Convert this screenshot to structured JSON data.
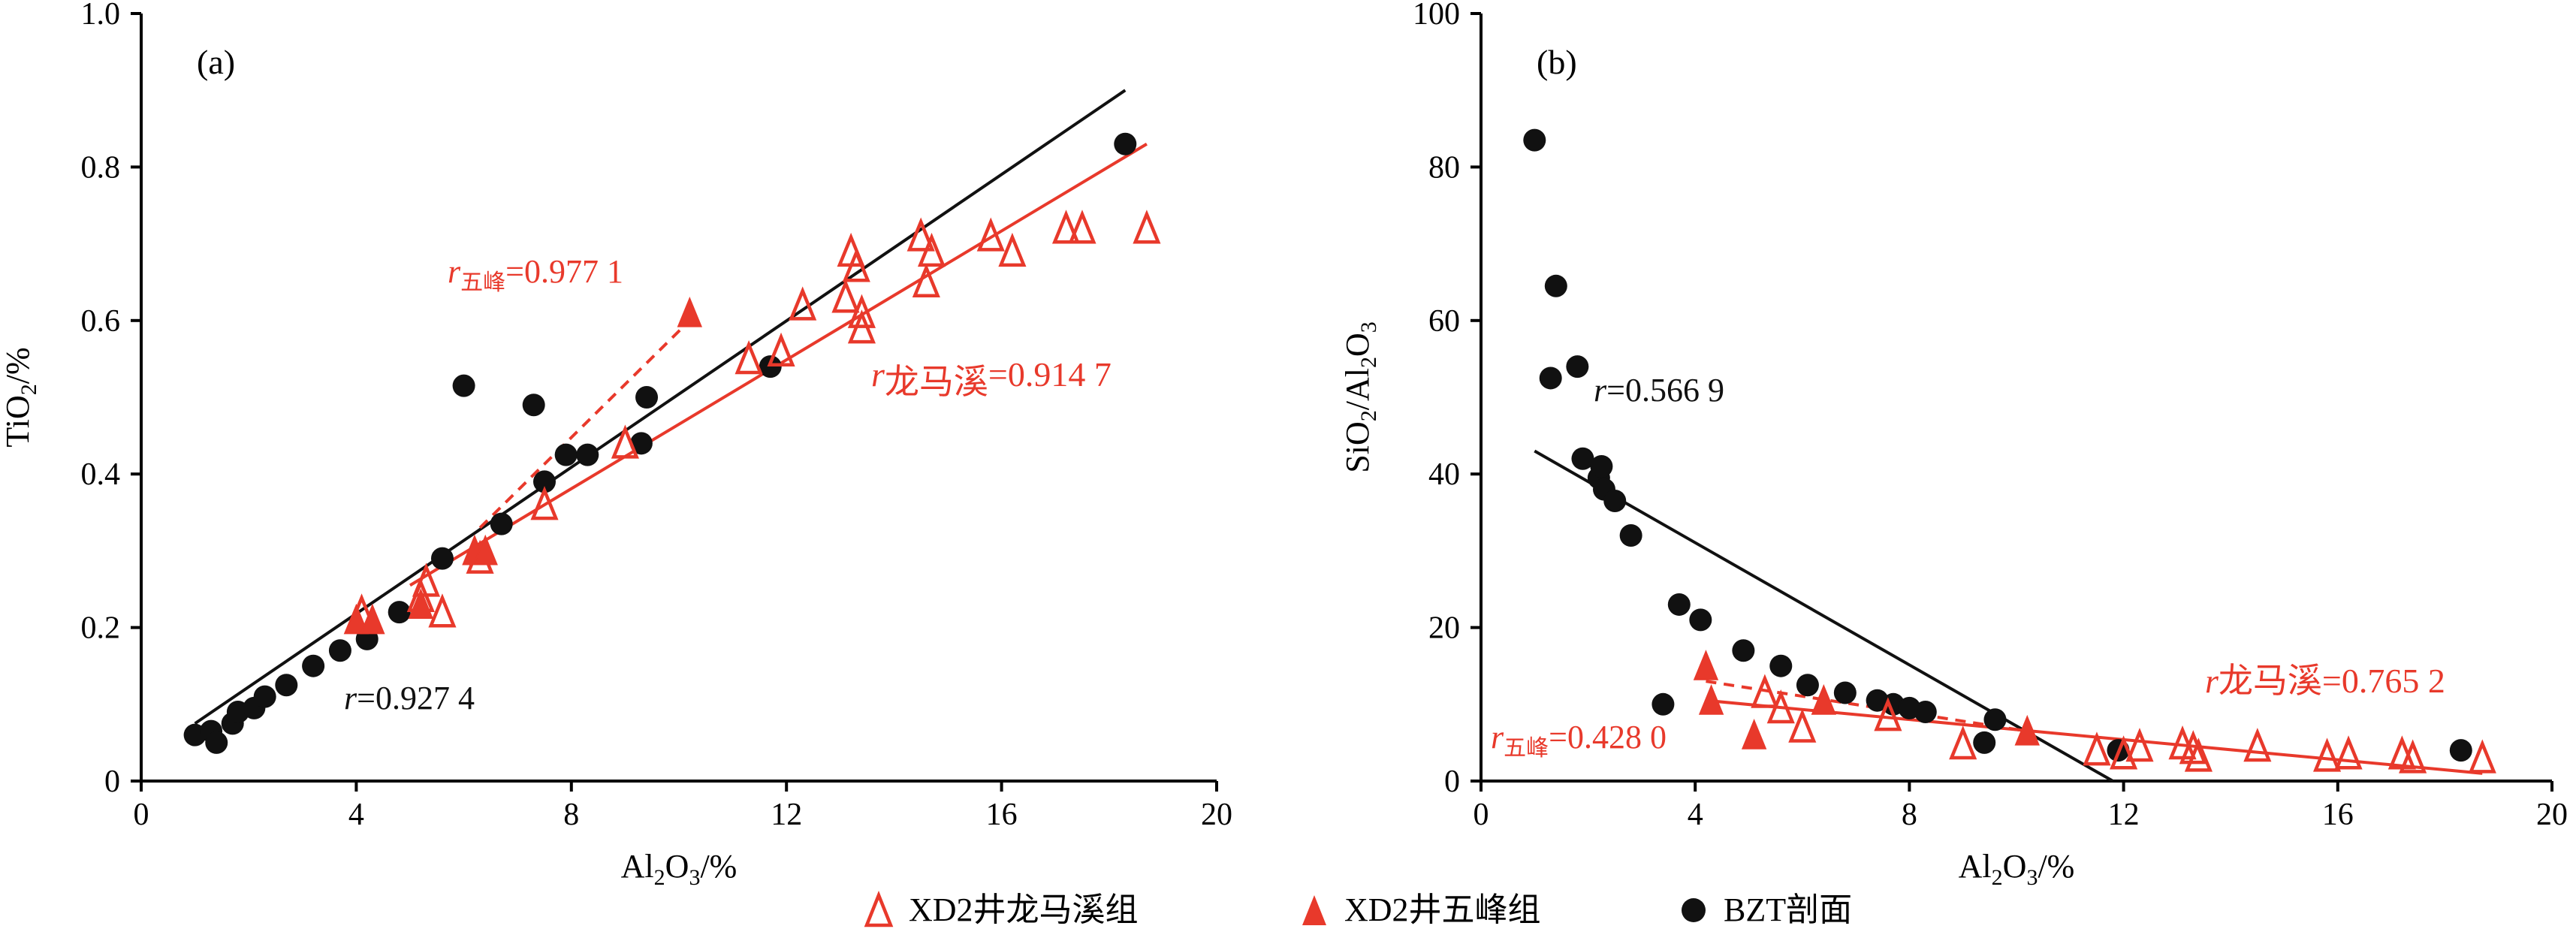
{
  "colors": {
    "red": "#e8392b",
    "black": "#111111"
  },
  "legend": {
    "items": [
      {
        "label": "XD2井龙马溪组",
        "marker": "open-triangle",
        "color": "#e8392b"
      },
      {
        "label": "XD2井五峰组",
        "marker": "filled-triangle",
        "color": "#e8392b"
      },
      {
        "label": "BZT剖面",
        "marker": "filled-circle",
        "color": "#111111"
      }
    ],
    "placement": "bottom-center"
  },
  "chart_data": [
    {
      "type": "scatter",
      "panel_label": "(a)",
      "xlabel": "Al2O3/%",
      "ylabel": "TiO2/%",
      "xlim": [
        0,
        20
      ],
      "ylim": [
        0,
        1.0
      ],
      "xticks": [
        0,
        4,
        8,
        12,
        16,
        20
      ],
      "yticks": [
        0,
        0.2,
        0.4,
        0.6,
        0.8,
        1.0
      ],
      "ytick_labels": [
        "0",
        "0.2",
        "0.4",
        "0.6",
        "0.8",
        "1.0"
      ],
      "grid": false,
      "series": [
        {
          "name": "XD2井龙马溪组",
          "marker": "open-triangle",
          "points": [
            [
              4.1,
              0.22
            ],
            [
              5.2,
              0.24
            ],
            [
              5.3,
              0.26
            ],
            [
              5.6,
              0.22
            ],
            [
              6.3,
              0.29
            ],
            [
              7.5,
              0.36
            ],
            [
              9.0,
              0.44
            ],
            [
              11.3,
              0.55
            ],
            [
              11.9,
              0.56
            ],
            [
              12.3,
              0.62
            ],
            [
              13.1,
              0.63
            ],
            [
              13.2,
              0.69
            ],
            [
              13.3,
              0.67
            ],
            [
              13.4,
              0.61
            ],
            [
              13.4,
              0.59
            ],
            [
              14.5,
              0.71
            ],
            [
              14.6,
              0.65
            ],
            [
              14.7,
              0.69
            ],
            [
              15.8,
              0.71
            ],
            [
              16.2,
              0.69
            ],
            [
              17.2,
              0.72
            ],
            [
              17.5,
              0.72
            ],
            [
              18.7,
              0.72
            ]
          ]
        },
        {
          "name": "XD2井五峰组",
          "marker": "filled-triangle",
          "points": [
            [
              4.0,
              0.21
            ],
            [
              4.3,
              0.21
            ],
            [
              5.2,
              0.23
            ],
            [
              6.2,
              0.3
            ],
            [
              6.4,
              0.3
            ],
            [
              10.2,
              0.61
            ]
          ]
        },
        {
          "name": "BZT剖面",
          "marker": "filled-circle",
          "points": [
            [
              1.0,
              0.06
            ],
            [
              1.3,
              0.065
            ],
            [
              1.4,
              0.05
            ],
            [
              1.7,
              0.075
            ],
            [
              1.8,
              0.09
            ],
            [
              2.1,
              0.095
            ],
            [
              2.3,
              0.11
            ],
            [
              2.7,
              0.125
            ],
            [
              3.2,
              0.15
            ],
            [
              3.7,
              0.17
            ],
            [
              4.2,
              0.185
            ],
            [
              4.8,
              0.22
            ],
            [
              5.6,
              0.29
            ],
            [
              6.0,
              0.515
            ],
            [
              6.7,
              0.335
            ],
            [
              7.3,
              0.49
            ],
            [
              7.5,
              0.39
            ],
            [
              7.9,
              0.425
            ],
            [
              8.3,
              0.425
            ],
            [
              9.3,
              0.44
            ],
            [
              9.4,
              0.5
            ],
            [
              11.7,
              0.54
            ],
            [
              18.3,
              0.83
            ]
          ]
        }
      ],
      "fit_lines": [
        {
          "color": "black",
          "style": "solid",
          "from": [
            1.0,
            0.075
          ],
          "to": [
            18.3,
            0.9
          ]
        },
        {
          "color": "red",
          "style": "solid",
          "from": [
            5.0,
            0.255
          ],
          "to": [
            18.7,
            0.83
          ]
        },
        {
          "color": "red",
          "style": "dashed",
          "from": [
            6.3,
            0.33
          ],
          "to": [
            10.2,
            0.6
          ]
        }
      ],
      "annotations": [
        {
          "r": "r",
          "sub": "五峰",
          "value": "=0.977 1",
          "color": "red"
        },
        {
          "r": "r",
          "sub": "龙马溪",
          "value": "=0.914 7",
          "color": "red"
        },
        {
          "r": "r",
          "sub": "",
          "value": "=0.927 4",
          "color": "black"
        }
      ]
    },
    {
      "type": "scatter",
      "panel_label": "(b)",
      "xlabel": "Al2O3/%",
      "ylabel": "SiO2/Al2O3",
      "xlim": [
        0,
        20
      ],
      "ylim": [
        0,
        100
      ],
      "xticks": [
        0,
        4,
        8,
        12,
        16,
        20
      ],
      "yticks": [
        0,
        20,
        40,
        60,
        80,
        100
      ],
      "ytick_labels": [
        "0",
        "20",
        "40",
        "60",
        "80",
        "100"
      ],
      "grid": false,
      "series": [
        {
          "name": "XD2井龙马溪组",
          "marker": "open-triangle",
          "points": [
            [
              5.3,
              11.5
            ],
            [
              5.6,
              9.5
            ],
            [
              6.0,
              7.0
            ],
            [
              7.6,
              8.5
            ],
            [
              9.0,
              4.8
            ],
            [
              11.5,
              4.0
            ],
            [
              12.0,
              3.5
            ],
            [
              12.3,
              4.5
            ],
            [
              13.1,
              4.8
            ],
            [
              13.3,
              4.2
            ],
            [
              13.4,
              3.2
            ],
            [
              14.5,
              4.5
            ],
            [
              15.8,
              3.2
            ],
            [
              16.2,
              3.5
            ],
            [
              17.2,
              3.5
            ],
            [
              17.4,
              3.0
            ],
            [
              18.7,
              3.0
            ]
          ]
        },
        {
          "name": "XD2井五峰组",
          "marker": "filled-triangle",
          "points": [
            [
              4.2,
              15.0
            ],
            [
              4.3,
              10.5
            ],
            [
              5.1,
              6.0
            ],
            [
              6.4,
              10.5
            ],
            [
              10.2,
              6.5
            ]
          ]
        },
        {
          "name": "BZT剖面",
          "marker": "filled-circle",
          "points": [
            [
              1.0,
              83.5
            ],
            [
              1.3,
              52.5
            ],
            [
              1.4,
              64.5
            ],
            [
              1.8,
              54.0
            ],
            [
              1.9,
              42.0
            ],
            [
              2.2,
              39.5
            ],
            [
              2.25,
              41.0
            ],
            [
              2.3,
              38.0
            ],
            [
              2.5,
              36.5
            ],
            [
              2.8,
              32.0
            ],
            [
              3.4,
              10.0
            ],
            [
              3.7,
              23.0
            ],
            [
              4.1,
              21.0
            ],
            [
              4.9,
              17.0
            ],
            [
              5.6,
              15.0
            ],
            [
              6.1,
              12.5
            ],
            [
              6.8,
              11.5
            ],
            [
              7.4,
              10.5
            ],
            [
              7.7,
              10.0
            ],
            [
              8.0,
              9.5
            ],
            [
              8.3,
              9.0
            ],
            [
              9.4,
              5.0
            ],
            [
              9.6,
              8.0
            ],
            [
              11.9,
              4.0
            ],
            [
              18.3,
              4.0
            ]
          ]
        }
      ],
      "fit_lines": [
        {
          "color": "black",
          "style": "solid",
          "from": [
            1.0,
            43.0
          ],
          "to": [
            11.8,
            0.0
          ]
        },
        {
          "color": "red",
          "style": "solid",
          "from": [
            4.2,
            10.5
          ],
          "to": [
            18.7,
            1.0
          ]
        },
        {
          "color": "red",
          "style": "dashed",
          "from": [
            4.2,
            13.0
          ],
          "to": [
            10.2,
            6.5
          ]
        }
      ],
      "annotations": [
        {
          "r": "r",
          "sub": "",
          "value": "=0.566 9",
          "color": "black"
        },
        {
          "r": "r",
          "sub": "龙马溪",
          "value": "=0.765 2",
          "color": "red"
        },
        {
          "r": "r",
          "sub": "五峰",
          "value": "=0.428 0",
          "color": "red"
        }
      ]
    }
  ]
}
